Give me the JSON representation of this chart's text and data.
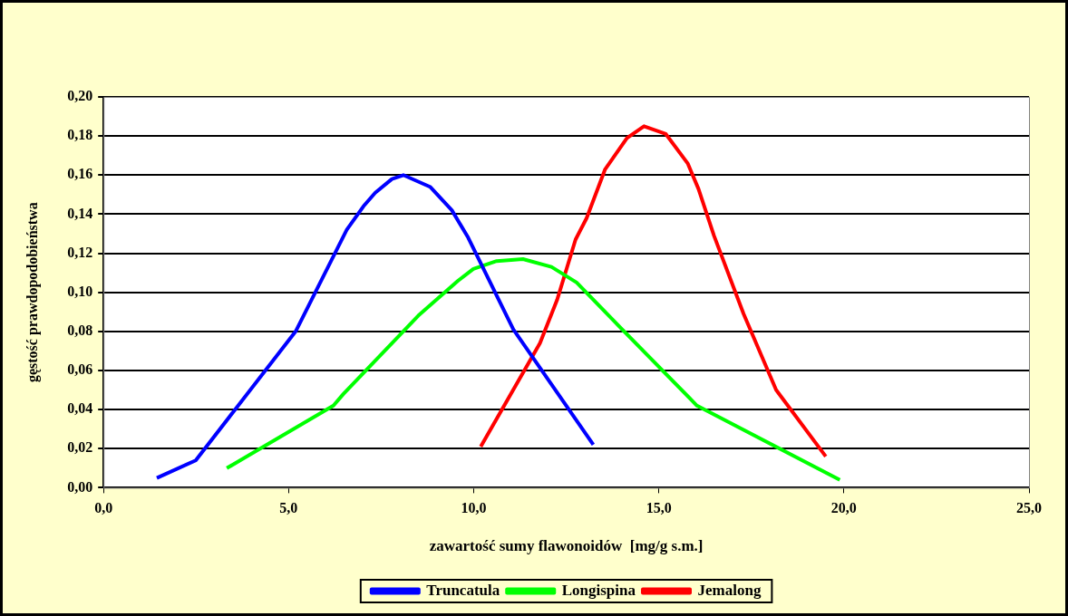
{
  "chart_data": {
    "type": "line",
    "xlabel": "zawartość sumy flawonoidów  [mg/g s.m.]",
    "ylabel": "gęstość prawdopodobieństwa",
    "xlim": [
      0,
      25
    ],
    "xticks": [
      {
        "value": 0,
        "label": "0,0"
      },
      {
        "value": 5,
        "label": "5,0"
      },
      {
        "value": 10,
        "label": "10,0"
      },
      {
        "value": 15,
        "label": "15,0"
      },
      {
        "value": 20,
        "label": "20,0"
      },
      {
        "value": 25,
        "label": "25,0"
      }
    ],
    "ylim": [
      0,
      0.2
    ],
    "yticks": [
      {
        "value": 0,
        "label": "0,00"
      },
      {
        "value": 0.02,
        "label": "0,02"
      },
      {
        "value": 0.04,
        "label": "0,04"
      },
      {
        "value": 0.06,
        "label": "0,06"
      },
      {
        "value": 0.08,
        "label": "0,08"
      },
      {
        "value": 0.1,
        "label": "0,10"
      },
      {
        "value": 0.12,
        "label": "0,12"
      },
      {
        "value": 0.14,
        "label": "0,14"
      },
      {
        "value": 0.16,
        "label": "0,16"
      },
      {
        "value": 0.18,
        "label": "0,18"
      },
      {
        "value": 0.2,
        "label": "0,20"
      }
    ],
    "grid": "y",
    "legend": "bottom",
    "marker": "none",
    "line_style": "solid",
    "series": [
      {
        "name": "Truncatula",
        "color": "#0000ff",
        "x": [
          1.44,
          2.49,
          5.19,
          6.57,
          7.02,
          7.34,
          7.79,
          8.1,
          8.82,
          9.41,
          9.85,
          11.07,
          13.23
        ],
        "values": [
          0.005,
          0.014,
          0.08,
          0.132,
          0.144,
          0.151,
          0.158,
          0.16,
          0.154,
          0.142,
          0.128,
          0.081,
          0.022
        ]
      },
      {
        "name": "Longispina",
        "color": "#00ff00",
        "x": [
          3.33,
          6.21,
          6.48,
          8.5,
          9.58,
          9.99,
          10.62,
          11.33,
          12.1,
          12.78,
          14.01,
          16.03,
          19.89
        ],
        "values": [
          0.01,
          0.042,
          0.048,
          0.088,
          0.106,
          0.112,
          0.116,
          0.117,
          0.113,
          0.105,
          0.081,
          0.042,
          0.004
        ]
      },
      {
        "name": "Jemalong",
        "color": "#ff0000",
        "x": [
          10.19,
          11.79,
          12.25,
          12.75,
          13.05,
          13.55,
          14.14,
          14.6,
          15.19,
          15.78,
          16.07,
          16.49,
          17.29,
          18.17,
          19.51
        ],
        "values": [
          0.021,
          0.074,
          0.096,
          0.127,
          0.138,
          0.163,
          0.179,
          0.185,
          0.181,
          0.166,
          0.153,
          0.129,
          0.089,
          0.05,
          0.016
        ]
      }
    ]
  }
}
